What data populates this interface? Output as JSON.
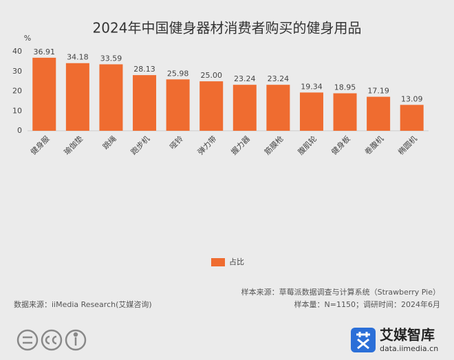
{
  "chart_data": {
    "type": "bar",
    "title": "2024年中国健身器材消费者购买的健身用品",
    "y_label": "%",
    "categories": [
      "健身服",
      "瑜伽垫",
      "跳绳",
      "跑步机",
      "哑铃",
      "弹力带",
      "握力器",
      "筋膜枪",
      "腹肌轮",
      "健身板",
      "卷腹机",
      "椭圆机"
    ],
    "series": [
      {
        "name": "占比",
        "color": "#ef6c30",
        "values": [
          36.91,
          34.18,
          33.59,
          28.13,
          25.98,
          25,
          23.24,
          23.24,
          19.34,
          18.95,
          17.19,
          13.09
        ],
        "value_labels": [
          "36.91",
          "34.18",
          "33.59",
          "28.13",
          "25.98",
          "25.00",
          "23.24",
          "23.24",
          "19.34",
          "18.95",
          "17.19",
          "13.09"
        ]
      }
    ],
    "ylim": [
      0,
      40
    ],
    "yticks": [
      0,
      10,
      20,
      30,
      40
    ],
    "grid": false,
    "legend": "bottom"
  },
  "footer": {
    "sample_source": "样本来源：草莓派数据调查与计算系统（Strawberry Pie）",
    "sample_size": "样本量：N=1150；调研时间：2024年6月",
    "data_source": "数据来源：iiMedia Research(艾媒咨询)",
    "brand": "艾媒智库",
    "url": "data.iimedia.cn"
  }
}
